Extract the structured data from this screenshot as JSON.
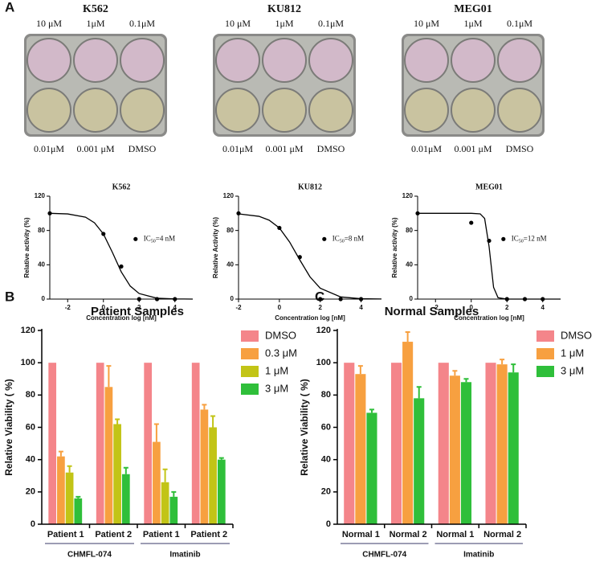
{
  "panel_labels": [
    "A",
    "B",
    "C"
  ],
  "plates": [
    {
      "title": "K562",
      "top_labels": [
        "10 μM",
        "1μM",
        "0.1μM"
      ],
      "bottom_labels": [
        "0.01μM",
        "0.001 μM",
        "DMSO"
      ]
    },
    {
      "title": "KU812",
      "top_labels": [
        "10 μM",
        "1μM",
        "0.1μM"
      ],
      "bottom_labels": [
        "0.01μM",
        "0.001 μM",
        "DMSO"
      ]
    },
    {
      "title": "MEG01",
      "top_labels": [
        "10 μM",
        "1μM",
        "0.1μM"
      ],
      "bottom_labels": [
        "0.01μM",
        "0.001 μM",
        "DMSO"
      ]
    }
  ],
  "chart_data": [
    {
      "type": "dose",
      "title": "K562",
      "xlabel": "Concentration log [nM]",
      "ylabel": "Relative activity (%)",
      "x": [
        -3,
        0,
        1,
        2,
        3,
        4
      ],
      "values": [
        100,
        76,
        38,
        0,
        0,
        0
      ],
      "curve": {
        "x": [
          -3,
          -2,
          -1,
          -0.5,
          0,
          0.5,
          1,
          1.5,
          2,
          3,
          4,
          5
        ],
        "values": [
          100,
          99.3,
          95.5,
          89,
          76,
          54.6,
          31.7,
          15.2,
          6.5,
          1,
          0.2,
          0
        ]
      },
      "annotation": {
        "prefix": "IC",
        "sub": "50",
        "rest": "=4 nM"
      },
      "xlim": [
        -3,
        5
      ],
      "xticks": [
        -2,
        0,
        2,
        4
      ],
      "ylim": [
        0,
        120
      ],
      "yticks": [
        0,
        40,
        80,
        120
      ],
      "color": "#000000"
    },
    {
      "type": "dose",
      "title": "KU812",
      "xlabel": "Concentration log [nM]",
      "ylabel": "Relative Activity (%)",
      "x": [
        -2,
        0,
        1,
        2,
        3,
        4
      ],
      "values": [
        100,
        83,
        49,
        0,
        0,
        0
      ],
      "curve": {
        "x": [
          -2,
          -1,
          -0.5,
          0,
          0.5,
          1,
          1.5,
          2,
          3,
          4,
          5
        ],
        "values": [
          99.4,
          96.5,
          92,
          83,
          66.6,
          45.7,
          25.9,
          12.7,
          2.5,
          0.4,
          0.1
        ]
      },
      "annotation": {
        "prefix": "IC",
        "sub": "50",
        "rest": "=8 nM"
      },
      "xlim": [
        -2,
        5
      ],
      "xticks": [
        -2,
        0,
        2,
        4
      ],
      "ylim": [
        0,
        120
      ],
      "yticks": [
        0,
        40,
        80,
        120
      ],
      "color": "#000000"
    },
    {
      "type": "dose",
      "title": "MEG01",
      "xlabel": "Concentration log [nM]",
      "ylabel": "Relative activity (%)",
      "x": [
        -3,
        0,
        1,
        2,
        3,
        4
      ],
      "values": [
        100,
        89,
        68,
        0,
        0,
        0
      ],
      "curve": {
        "x": [
          -3,
          -2,
          -1,
          0,
          0.5,
          0.75,
          1,
          1.25,
          1.5,
          2,
          3,
          4,
          5
        ],
        "values": [
          100,
          100,
          100,
          100,
          99.4,
          94,
          61,
          13.7,
          1.6,
          0,
          0,
          0,
          0
        ]
      },
      "annotation": {
        "prefix": "IC",
        "sub": "50",
        "rest": "=12 nM"
      },
      "xlim": [
        -3,
        5
      ],
      "xticks": [
        -2,
        0,
        2,
        4
      ],
      "ylim": [
        0,
        120
      ],
      "yticks": [
        0,
        40,
        80,
        120
      ],
      "color": "#000000"
    },
    {
      "type": "bar",
      "title": "Patient Samples",
      "ylabel": "Relative Viability ( %)",
      "categories": [
        "Patient 1",
        "Patient 2",
        "Patient 1",
        "Patient 2"
      ],
      "groups": [
        "CHMFL-074",
        "Imatinib"
      ],
      "series": [
        {
          "name": "DMSO",
          "color": "#f4858a",
          "values": [
            100,
            100,
            100,
            100
          ]
        },
        {
          "name": "0.3 μM",
          "color": "#f7a040",
          "values": [
            42,
            85,
            51,
            71
          ],
          "errors": [
            3,
            13,
            11,
            3
          ]
        },
        {
          "name": "1 μM",
          "color": "#c2c416",
          "values": [
            32,
            62,
            26,
            60
          ],
          "errors": [
            4,
            3,
            8,
            7
          ]
        },
        {
          "name": "3 μM",
          "color": "#2fbf3a",
          "values": [
            16,
            31,
            17,
            40
          ],
          "errors": [
            1,
            4,
            3,
            1
          ]
        }
      ],
      "ylim": [
        0,
        120
      ],
      "yticks": [
        0,
        20,
        40,
        60,
        80,
        100,
        120
      ]
    },
    {
      "type": "bar",
      "title": "Normal Samples",
      "ylabel": "Relative Viability ( %)",
      "categories": [
        "Normal 1",
        "Normal 2",
        "Normal 1",
        "Normal 2"
      ],
      "groups": [
        "CHMFL-074",
        "Imatinib"
      ],
      "series": [
        {
          "name": "DMSO",
          "color": "#f4858a",
          "values": [
            100,
            100,
            100,
            100
          ]
        },
        {
          "name": "1 μM",
          "color": "#f7a040",
          "values": [
            93,
            113,
            92,
            99
          ],
          "errors": [
            5,
            6,
            3,
            3
          ]
        },
        {
          "name": "3 μM",
          "color": "#2fbf3a",
          "values": [
            69,
            78,
            88,
            94
          ],
          "errors": [
            2,
            7,
            2,
            5
          ]
        }
      ],
      "ylim": [
        0,
        120
      ],
      "yticks": [
        0,
        20,
        40,
        60,
        80,
        100,
        120
      ]
    }
  ]
}
